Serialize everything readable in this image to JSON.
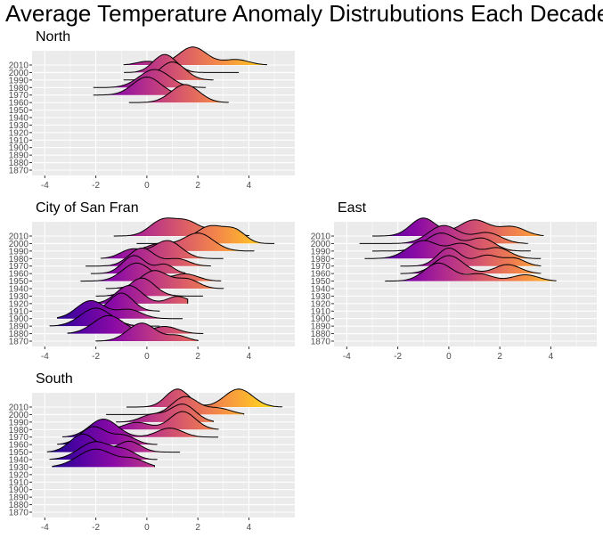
{
  "title": "Average Temperature Anomaly Distrubutions Each Decade",
  "colors": {
    "panel_bg": "#EBEBEB",
    "grid": "#FFFFFF",
    "tick_text": "#4D4D4D",
    "ridge_outline": "#000000",
    "gradient": [
      "#0D0887",
      "#5402A3",
      "#8B0AA5",
      "#B83289",
      "#DB5C68",
      "#F48849",
      "#FEBC2A",
      "#F0F921"
    ]
  },
  "chart_data": [
    {
      "type": "ridgeline",
      "region": "North",
      "title": "North",
      "x_ticks": [
        -4,
        -2,
        0,
        2,
        4
      ],
      "xlim": [
        -4.5,
        5.8
      ],
      "y_categories": [
        "1870",
        "1880",
        "1890",
        "1900",
        "1910",
        "1920",
        "1930",
        "1940",
        "1950",
        "1960",
        "1970",
        "1980",
        "1990",
        "2000",
        "2010"
      ],
      "color_range": [
        -4,
        5.5
      ],
      "ridges": [
        {
          "decade": "1960",
          "peaks": [
            {
              "mean": 1.5,
              "sd": 0.55,
              "w": 1.0
            }
          ],
          "range": [
            -0.7,
            3.2
          ]
        },
        {
          "decade": "1970",
          "peaks": [
            {
              "mean": 0.0,
              "sd": 0.55,
              "w": 1.0
            }
          ],
          "range": [
            -2.1,
            1.8
          ]
        },
        {
          "decade": "1980",
          "peaks": [
            {
              "mean": 0.3,
              "sd": 0.6,
              "w": 1.0
            }
          ],
          "range": [
            -2.1,
            2.3
          ]
        },
        {
          "decade": "1990",
          "peaks": [
            {
              "mean": 1.0,
              "sd": 0.5,
              "w": 1.0
            }
          ],
          "range": [
            -0.9,
            2.6
          ]
        },
        {
          "decade": "2000",
          "peaks": [
            {
              "mean": 0.7,
              "sd": 0.45,
              "w": 1.0
            }
          ],
          "range": [
            -0.9,
            3.6
          ]
        },
        {
          "decade": "2010",
          "peaks": [
            {
              "mean": 1.8,
              "sd": 0.55,
              "w": 1.0
            },
            {
              "mean": 3.5,
              "sd": 0.5,
              "w": 0.3
            },
            {
              "mean": 0.0,
              "sd": 0.4,
              "w": 0.2
            }
          ],
          "range": [
            -0.9,
            4.7
          ]
        }
      ]
    },
    {
      "type": "ridgeline",
      "region": "City of San Fran",
      "title": "City of San Fran",
      "x_ticks": [
        -4,
        -2,
        0,
        2,
        4
      ],
      "xlim": [
        -4.5,
        5.8
      ],
      "y_categories": [
        "1870",
        "1880",
        "1890",
        "1900",
        "1910",
        "1920",
        "1930",
        "1940",
        "1950",
        "1960",
        "1970",
        "1980",
        "1990",
        "2000",
        "2010"
      ],
      "color_range": [
        -4,
        5.5
      ],
      "ridges": [
        {
          "decade": "1870",
          "peaks": [
            {
              "mean": -0.2,
              "sd": 0.55,
              "w": 1.0
            },
            {
              "mean": 1.2,
              "sd": 0.4,
              "w": 0.3
            }
          ],
          "range": [
            -2.0,
            2.0
          ]
        },
        {
          "decade": "1880",
          "peaks": [
            {
              "mean": -1.5,
              "sd": 0.6,
              "w": 1.0
            },
            {
              "mean": 0.7,
              "sd": 0.5,
              "w": 0.4
            }
          ],
          "range": [
            -3.1,
            2.2
          ]
        },
        {
          "decade": "1890",
          "peaks": [
            {
              "mean": -2.0,
              "sd": 0.6,
              "w": 1.0
            }
          ],
          "range": [
            -3.8,
            0.5
          ]
        },
        {
          "decade": "1900",
          "peaks": [
            {
              "mean": -2.2,
              "sd": 0.55,
              "w": 1.0
            },
            {
              "mean": -0.7,
              "sd": 0.5,
              "w": 0.5
            }
          ],
          "range": [
            -3.5,
            1.4
          ]
        },
        {
          "decade": "1910",
          "peaks": [
            {
              "mean": -1.0,
              "sd": 0.45,
              "w": 1.0
            }
          ],
          "range": [
            -2.8,
            0.5
          ]
        },
        {
          "decade": "1920",
          "peaks": [
            {
              "mean": -0.7,
              "sd": 0.5,
              "w": 1.0
            },
            {
              "mean": 1.2,
              "sd": 0.4,
              "w": 0.4
            }
          ],
          "range": [
            -2.2,
            1.6
          ]
        },
        {
          "decade": "1930",
          "peaks": [
            {
              "mean": -0.2,
              "sd": 0.5,
              "w": 1.0
            }
          ],
          "range": [
            -2.0,
            2.2
          ]
        },
        {
          "decade": "1940",
          "peaks": [
            {
              "mean": 0.3,
              "sd": 0.55,
              "w": 1.0
            },
            {
              "mean": 1.6,
              "sd": 0.45,
              "w": 0.5
            }
          ],
          "range": [
            -1.6,
            3.0
          ]
        },
        {
          "decade": "1950",
          "peaks": [
            {
              "mean": -0.4,
              "sd": 0.55,
              "w": 1.0
            },
            {
              "mean": 1.5,
              "sd": 0.5,
              "w": 0.4
            }
          ],
          "range": [
            -2.6,
            2.9
          ]
        },
        {
          "decade": "1960",
          "peaks": [
            {
              "mean": -0.5,
              "sd": 0.45,
              "w": 1.0
            },
            {
              "mean": 0.7,
              "sd": 0.35,
              "w": 0.5
            }
          ],
          "range": [
            -2.2,
            1.5
          ]
        },
        {
          "decade": "1970",
          "peaks": [
            {
              "mean": -0.2,
              "sd": 0.5,
              "w": 1.0
            },
            {
              "mean": 1.2,
              "sd": 0.45,
              "w": 0.4
            }
          ],
          "range": [
            -2.4,
            2.5
          ]
        },
        {
          "decade": "1980",
          "peaks": [
            {
              "mean": 0.8,
              "sd": 0.55,
              "w": 1.0
            },
            {
              "mean": -0.6,
              "sd": 0.45,
              "w": 0.5
            }
          ],
          "range": [
            -1.8,
            3.0
          ]
        },
        {
          "decade": "1990",
          "peaks": [
            {
              "mean": 2.0,
              "sd": 0.6,
              "w": 1.0
            },
            {
              "mean": 0.5,
              "sd": 0.5,
              "w": 0.4
            }
          ],
          "range": [
            -0.8,
            4.2
          ]
        },
        {
          "decade": "2000",
          "peaks": [
            {
              "mean": 2.5,
              "sd": 0.6,
              "w": 1.0
            },
            {
              "mean": 3.5,
              "sd": 0.4,
              "w": 0.6
            }
          ],
          "range": [
            -0.4,
            5.0
          ]
        },
        {
          "decade": "2010",
          "peaks": [
            {
              "mean": 0.6,
              "sd": 0.5,
              "w": 1.0
            },
            {
              "mean": 1.6,
              "sd": 0.5,
              "w": 0.9
            },
            {
              "mean": 2.9,
              "sd": 0.45,
              "w": 0.5
            }
          ],
          "range": [
            -1.3,
            4.0
          ]
        }
      ]
    },
    {
      "type": "ridgeline",
      "region": "East",
      "title": "East",
      "x_ticks": [
        -4,
        -2,
        0,
        2,
        4
      ],
      "xlim": [
        -4.5,
        5.8
      ],
      "y_categories": [
        "1870",
        "1880",
        "1890",
        "1900",
        "1910",
        "1920",
        "1930",
        "1940",
        "1950",
        "1960",
        "1970",
        "1980",
        "1990",
        "2000",
        "2010"
      ],
      "color_range": [
        -4,
        5.5
      ],
      "ridges": [
        {
          "decade": "1950",
          "peaks": [
            {
              "mean": -0.4,
              "sd": 0.55,
              "w": 1.0
            },
            {
              "mean": 1.2,
              "sd": 0.5,
              "w": 0.4
            },
            {
              "mean": 3.0,
              "sd": 0.5,
              "w": 0.35
            }
          ],
          "range": [
            -2.5,
            4.2
          ]
        },
        {
          "decade": "1960",
          "peaks": [
            {
              "mean": 0.0,
              "sd": 0.55,
              "w": 1.0
            },
            {
              "mean": 2.3,
              "sd": 0.5,
              "w": 0.5
            }
          ],
          "range": [
            -1.9,
            3.6
          ]
        },
        {
          "decade": "1970",
          "peaks": [
            {
              "mean": 0.0,
              "sd": 0.45,
              "w": 1.0
            },
            {
              "mean": 1.5,
              "sd": 0.5,
              "w": 0.6
            },
            {
              "mean": 2.6,
              "sd": 0.4,
              "w": 0.4
            }
          ],
          "range": [
            -1.9,
            3.6
          ]
        },
        {
          "decade": "1980",
          "peaks": [
            {
              "mean": -1.0,
              "sd": 0.6,
              "w": 1.0
            },
            {
              "mean": 0.5,
              "sd": 0.5,
              "w": 0.8
            },
            {
              "mean": 1.9,
              "sd": 0.5,
              "w": 0.6
            }
          ],
          "range": [
            -3.3,
            3.6
          ]
        },
        {
          "decade": "1990",
          "peaks": [
            {
              "mean": -0.3,
              "sd": 0.6,
              "w": 1.0
            },
            {
              "mean": 1.3,
              "sd": 0.5,
              "w": 0.7
            }
          ],
          "range": [
            -3.0,
            3.2
          ]
        },
        {
          "decade": "2000",
          "peaks": [
            {
              "mean": -0.2,
              "sd": 0.6,
              "w": 1.0
            },
            {
              "mean": 1.5,
              "sd": 0.55,
              "w": 0.6
            }
          ],
          "range": [
            -3.5,
            3.1
          ]
        },
        {
          "decade": "2010",
          "peaks": [
            {
              "mean": -1.0,
              "sd": 0.5,
              "w": 1.0
            },
            {
              "mean": 1.0,
              "sd": 0.6,
              "w": 0.9
            },
            {
              "mean": 2.5,
              "sd": 0.5,
              "w": 0.5
            }
          ],
          "range": [
            -3.0,
            3.7
          ]
        }
      ]
    },
    {
      "type": "ridgeline",
      "region": "South",
      "title": "South",
      "x_ticks": [
        -4,
        -2,
        0,
        2,
        4
      ],
      "xlim": [
        -4.5,
        5.8
      ],
      "y_categories": [
        "1870",
        "1880",
        "1890",
        "1900",
        "1910",
        "1920",
        "1930",
        "1940",
        "1950",
        "1960",
        "1970",
        "1980",
        "1990",
        "2000",
        "2010"
      ],
      "color_range": [
        -4,
        5.5
      ],
      "ridges": [
        {
          "decade": "1930",
          "peaks": [
            {
              "mean": -2.0,
              "sd": 0.7,
              "w": 1.0
            },
            {
              "mean": -0.5,
              "sd": 0.45,
              "w": 0.4
            }
          ],
          "range": [
            -3.7,
            0.3
          ]
        },
        {
          "decade": "1940",
          "peaks": [
            {
              "mean": -2.0,
              "sd": 0.65,
              "w": 1.0
            },
            {
              "mean": -0.8,
              "sd": 0.4,
              "w": 0.4
            }
          ],
          "range": [
            -3.8,
            0.4
          ]
        },
        {
          "decade": "1950",
          "peaks": [
            {
              "mean": -2.5,
              "sd": 0.5,
              "w": 1.0
            },
            {
              "mean": -0.7,
              "sd": 0.45,
              "w": 0.6
            }
          ],
          "range": [
            -3.9,
            1.3
          ]
        },
        {
          "decade": "1960",
          "peaks": [
            {
              "mean": -2.1,
              "sd": 0.5,
              "w": 1.0
            },
            {
              "mean": -0.9,
              "sd": 0.45,
              "w": 0.5
            }
          ],
          "range": [
            -3.5,
            0.4
          ]
        },
        {
          "decade": "1970",
          "peaks": [
            {
              "mean": -1.7,
              "sd": 0.55,
              "w": 1.0
            },
            {
              "mean": 0.9,
              "sd": 0.5,
              "w": 0.5
            }
          ],
          "range": [
            -3.3,
            2.8
          ]
        },
        {
          "decade": "1980",
          "peaks": [
            {
              "mean": 1.4,
              "sd": 0.5,
              "w": 1.0
            },
            {
              "mean": -0.4,
              "sd": 0.5,
              "w": 0.4
            }
          ],
          "range": [
            -1.3,
            2.8
          ]
        },
        {
          "decade": "1990",
          "peaks": [
            {
              "mean": 1.4,
              "sd": 0.5,
              "w": 1.0
            },
            {
              "mean": 0.2,
              "sd": 0.45,
              "w": 0.4
            }
          ],
          "range": [
            -1.2,
            2.6
          ]
        },
        {
          "decade": "2000",
          "peaks": [
            {
              "mean": 1.5,
              "sd": 0.5,
              "w": 1.0
            },
            {
              "mean": 2.8,
              "sd": 0.5,
              "w": 0.35
            }
          ],
          "range": [
            -1.6,
            3.8
          ]
        },
        {
          "decade": "2010",
          "peaks": [
            {
              "mean": 1.2,
              "sd": 0.45,
              "w": 1.0
            },
            {
              "mean": 3.6,
              "sd": 0.55,
              "w": 1.0
            }
          ],
          "range": [
            -0.8,
            5.3
          ]
        }
      ]
    }
  ]
}
